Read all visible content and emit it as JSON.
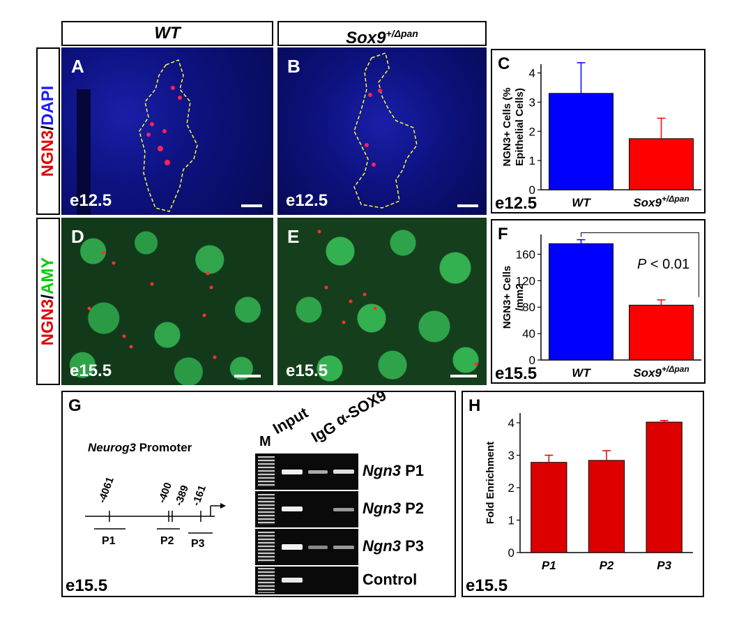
{
  "headers": {
    "wt": "WT",
    "sox9": "Sox9",
    "sox9_sup": "+/Δpan"
  },
  "side_labels": {
    "row1": {
      "a": "NGN3",
      "sep": "/",
      "b": "DAPI"
    },
    "row2": {
      "a": "NGN3",
      "sep": "/",
      "b": "AMY"
    }
  },
  "panels": {
    "A": {
      "label": "A",
      "stage": "e12.5"
    },
    "B": {
      "label": "B",
      "stage": "e12.5"
    },
    "C": {
      "label": "C",
      "stage": "e12.5"
    },
    "D": {
      "label": "D",
      "stage": "e15.5"
    },
    "E": {
      "label": "E",
      "stage": "e15.5"
    },
    "F": {
      "label": "F",
      "stage": "e15.5",
      "pvalue_p": "P",
      "pvalue_rest": " < 0.01"
    },
    "G": {
      "label": "G",
      "stage": "e15.5",
      "promoter_gene": "Neurog3",
      "promoter_word": " Promoter",
      "positions": [
        "-4061",
        "-400",
        "-389",
        "-161"
      ],
      "primers": [
        "P1",
        "P2",
        "P3"
      ],
      "gel_columns": [
        "M",
        "Input",
        "IgG",
        "α-SOX9"
      ],
      "gel_rows": [
        {
          "gene": "Ngn3",
          "primer": " P1"
        },
        {
          "gene": "Ngn3",
          "primer": " P2"
        },
        {
          "gene": "Ngn3",
          "primer": " P3"
        },
        {
          "gene": "",
          "primer": "Control"
        }
      ]
    },
    "H": {
      "label": "H",
      "stage": "e15.5"
    }
  },
  "chart_data": [
    {
      "panel": "C",
      "type": "bar",
      "categories": [
        "WT",
        "Sox9+/Δpan"
      ],
      "values": [
        3.3,
        1.75
      ],
      "errors": [
        1.05,
        0.7
      ],
      "colors": [
        "#0000ff",
        "#ff0000"
      ],
      "ylabel_line1": "NGN3+ Cells (%",
      "ylabel_line2": "Epithelial Cells)",
      "ylim": [
        0,
        4.3
      ],
      "yticks": [
        0,
        1,
        2,
        3,
        4
      ]
    },
    {
      "panel": "F",
      "type": "bar",
      "categories": [
        "WT",
        "Sox9+/Δpan"
      ],
      "values": [
        176,
        83
      ],
      "errors": [
        6,
        8
      ],
      "colors": [
        "#0000ff",
        "#ff0000"
      ],
      "ylabel_line1": "NGN3+ Cells",
      "ylabel_line2": "/mm2",
      "ylim": [
        0,
        190
      ],
      "yticks": [
        0,
        40,
        80,
        120,
        160
      ]
    },
    {
      "panel": "H",
      "type": "bar",
      "categories": [
        "P1",
        "P2",
        "P3"
      ],
      "values": [
        2.78,
        2.84,
        4.02
      ],
      "errors": [
        0.22,
        0.3,
        0.05
      ],
      "colors": [
        "#dd0000",
        "#dd0000",
        "#dd0000"
      ],
      "ylabel_line1": "Fold Enrichment",
      "ylabel_line2": "",
      "ylim": [
        0,
        4.3
      ],
      "yticks": [
        0,
        1,
        2,
        3,
        4
      ]
    }
  ]
}
